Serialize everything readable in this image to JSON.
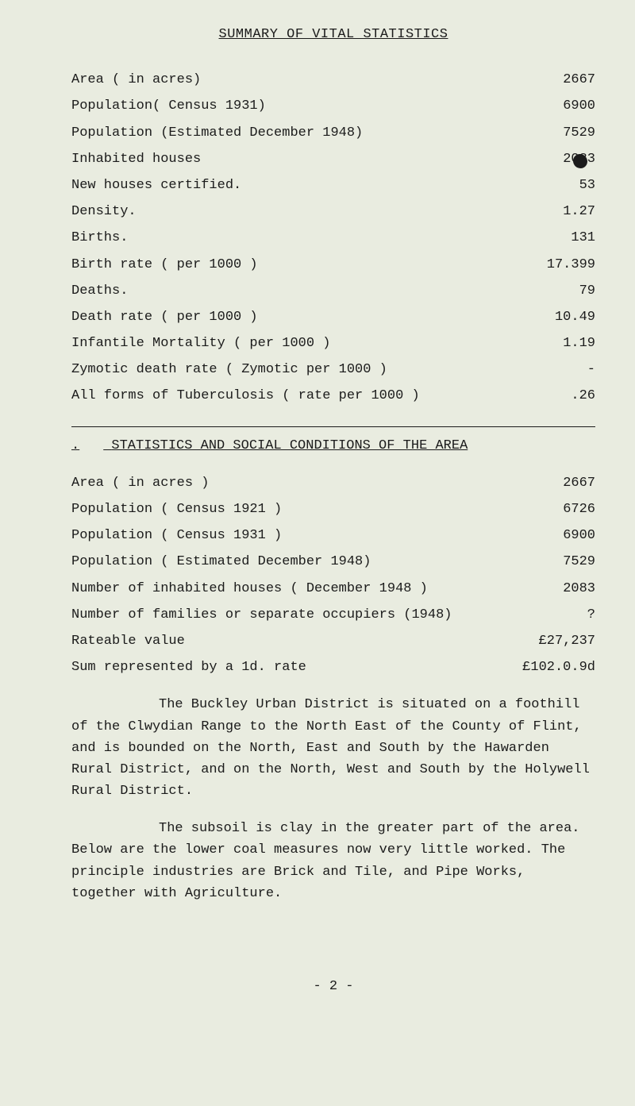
{
  "title": "SUMMARY OF VITAL STATISTICS",
  "vital_stats": [
    {
      "label": "Area ( in acres)",
      "value": "2667"
    },
    {
      "label": "Population( Census 1931)",
      "value": "6900"
    },
    {
      "label": "Population (Estimated December 1948)",
      "value": "7529"
    },
    {
      "label": "Inhabited houses",
      "value": "2083"
    },
    {
      "label": "New houses certified.",
      "value": "53"
    },
    {
      "label": "Density.",
      "value": "1.27"
    },
    {
      "label": "Births.",
      "value": "131"
    },
    {
      "label": "Birth rate ( per 1000 )",
      "value": "17.399"
    },
    {
      "label": "Deaths.",
      "value": "79"
    },
    {
      "label": "Death rate ( per 1000 )",
      "value": "10.49"
    },
    {
      "label": "Infantile Mortality ( per 1000 )",
      "value": "1.19"
    },
    {
      "label": "Zymotic death rate ( Zymotic per 1000 )",
      "value": "-"
    },
    {
      "label": "All forms of Tuberculosis ( rate per 1000 )",
      "value": ".26"
    }
  ],
  "section2_title": "STATISTICS AND SOCIAL CONDITIONS OF THE AREA",
  "section2_dot": ".",
  "social_stats": [
    {
      "label": "Area ( in acres )",
      "value": "2667"
    },
    {
      "label": "Population ( Census 1921 )",
      "value": "6726"
    },
    {
      "label": "Population ( Census 1931 )",
      "value": "6900"
    },
    {
      "label": "Population ( Estimated December 1948)",
      "value": "7529"
    },
    {
      "label": "Number of inhabited houses ( December 1948 )",
      "value": "2083"
    },
    {
      "label": "Number of families or separate occupiers (1948)",
      "value": "?"
    },
    {
      "label": "Rateable value",
      "value": "£27,237"
    },
    {
      "label": "Sum represented by a 1d. rate",
      "value": "£102.0.9d"
    }
  ],
  "paragraph1": "The Buckley Urban District is situated on a foothill of the Clwydian Range to the North East of the County of Flint, and is bounded on the North, East and South by the Hawarden Rural District, and on the North, West and South by the Holywell Rural District.",
  "paragraph2": "The subsoil is clay in the greater part of the area. Below are the lower coal measures now very little worked. The principle industries are Brick and Tile, and Pipe Works, together with Agriculture.",
  "page_number": "- 2 -"
}
